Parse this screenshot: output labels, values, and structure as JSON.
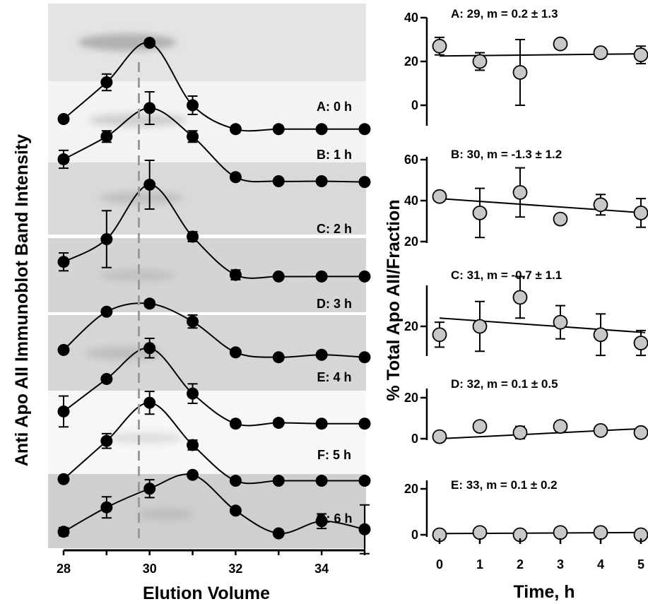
{
  "chart_data": [
    {
      "type": "line",
      "panel": "left",
      "xlabel": "Elution Volume",
      "ylabel": "Anti Apo AII Immunoblot Band Intensity",
      "x": [
        28,
        29,
        30,
        31,
        32,
        33,
        34,
        35
      ],
      "xlim": [
        28,
        35
      ],
      "xticks": [
        28,
        30,
        32,
        34
      ],
      "series": [
        {
          "name": "A: 0 h",
          "values": [
            0.15,
            0.55,
            0.98,
            0.3,
            0.04,
            0.04,
            0.04,
            0.04
          ],
          "errors": [
            0,
            0.09,
            0,
            0.1,
            0,
            0,
            0,
            0
          ]
        },
        {
          "name": "B: 1 h",
          "values": [
            0.37,
            0.65,
            1.0,
            0.65,
            0.15,
            0.1,
            0.1,
            0.09
          ],
          "errors": [
            0.11,
            0.07,
            0.2,
            0.07,
            0,
            0,
            0,
            0
          ]
        },
        {
          "name": "C: 2 h",
          "values": [
            0.22,
            0.5,
            1.17,
            0.53,
            0.06,
            0.04,
            0.04,
            0.04
          ],
          "errors": [
            0.11,
            0.35,
            0.3,
            0.06,
            0.06,
            0,
            0,
            0
          ]
        },
        {
          "name": "D: 3 h",
          "values": [
            0.11,
            0.58,
            0.68,
            0.46,
            0.08,
            0.02,
            0.05,
            0.02
          ],
          "errors": [
            0,
            0,
            0.04,
            0.08,
            0,
            0,
            0,
            0
          ]
        },
        {
          "name": "E: 4 h",
          "values": [
            0.17,
            0.57,
            0.95,
            0.39,
            0.02,
            0.03,
            0.02,
            0.02
          ],
          "errors": [
            0.19,
            0,
            0.12,
            0.12,
            0,
            0,
            0,
            0
          ]
        },
        {
          "name": "F: 5 h",
          "values": [
            0.05,
            0.52,
            0.99,
            0.47,
            0.03,
            0.03,
            0.03,
            0.03
          ],
          "errors": [
            0,
            0.09,
            0.14,
            0.06,
            0,
            0,
            0,
            0
          ]
        },
        {
          "name": "G: 6 h",
          "values": [
            0.02,
            0.32,
            0.55,
            0.72,
            0.28,
            0.0,
            0.15,
            0.05
          ],
          "errors": [
            0.05,
            0.13,
            0.11,
            0,
            0,
            0,
            0.09,
            0.3
          ]
        }
      ],
      "reference_line_x": 29.75
    },
    {
      "type": "scatter",
      "panel": "right",
      "xlabel": "Time, h",
      "ylabel": "% Total Apo AII/Fraction",
      "x": [
        0,
        1,
        2,
        3,
        4,
        5
      ],
      "xlim": [
        0,
        5
      ],
      "xticks": [
        0,
        1,
        2,
        3,
        4,
        5
      ],
      "panels": [
        {
          "label": "A:  29, m = 0.2 ± 1.3",
          "ylim": [
            -5,
            40
          ],
          "yticks": [
            0,
            20,
            40
          ],
          "values": [
            27,
            20,
            15,
            28,
            24,
            23
          ],
          "errors": [
            4,
            4,
            15,
            0,
            0,
            4
          ],
          "fit": [
            22.5,
            23.5
          ]
        },
        {
          "label": "B:  30, m = -1.3 ± 1.2",
          "ylim": [
            10,
            60
          ],
          "yticks": [
            20,
            40,
            60
          ],
          "values": [
            42,
            34,
            44,
            31,
            38,
            34
          ],
          "errors": [
            0,
            12,
            12,
            0,
            5,
            7
          ],
          "fit": [
            41,
            34
          ]
        },
        {
          "label": "C:  31, m = -0.7 ± 1.1",
          "ylim": [
            8,
            40
          ],
          "yticks": [
            20
          ],
          "values": [
            18,
            20,
            27,
            21,
            18,
            16
          ],
          "errors": [
            3,
            6,
            5,
            4,
            5,
            3
          ],
          "fit": [
            22,
            18.5
          ]
        },
        {
          "label": "D:  32, m = 0.1 ± 0.5",
          "ylim": [
            0,
            22
          ],
          "yticks": [
            0,
            20
          ],
          "values": [
            1,
            6,
            3,
            6,
            4,
            3
          ],
          "errors": [
            0,
            0,
            3,
            0,
            0,
            0
          ],
          "fit": [
            0,
            5
          ]
        },
        {
          "label": "E:  33, m = 0.1 ± 0.2",
          "ylim": [
            0,
            22
          ],
          "yticks": [
            0,
            20
          ],
          "values": [
            0,
            1,
            0,
            1,
            1,
            0
          ],
          "errors": [
            0,
            0,
            0,
            0,
            0,
            0
          ],
          "fit": [
            0.5,
            1
          ]
        }
      ]
    }
  ],
  "labels": {
    "left_xlabel": "Elution Volume",
    "left_ylabel": "Anti Apo AII Immunoblot Band Intensity",
    "right_xlabel": "Time, h",
    "right_ylabel": "% Total Apo AII/Fraction"
  },
  "colors": {
    "marker_dark": "#000000",
    "marker_light": "#c8c8c8",
    "blot_background": "#d8d8d8",
    "reference_line": "#9a9a9a"
  }
}
